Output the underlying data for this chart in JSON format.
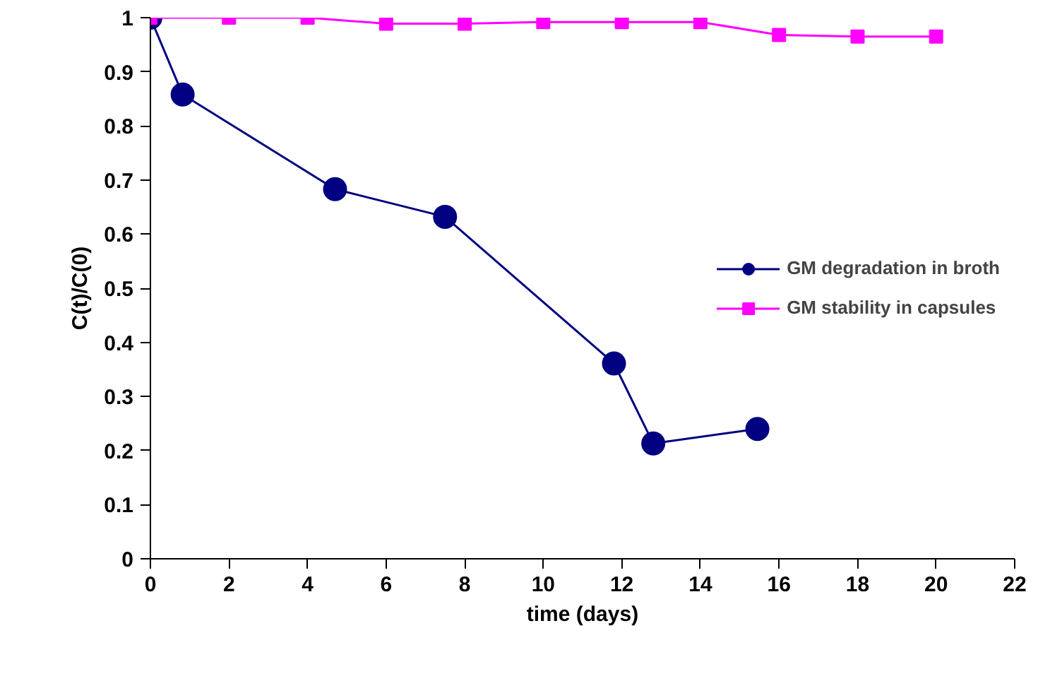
{
  "chart_data": {
    "type": "line",
    "xlabel": "time (days)",
    "ylabel": "C(t)/C(0)",
    "xlim": [
      0,
      22
    ],
    "xticks": [
      0,
      2,
      4,
      6,
      8,
      10,
      12,
      14,
      16,
      18,
      20,
      22
    ],
    "ylim": [
      0,
      1
    ],
    "yticks": [
      0,
      0.1,
      0.2,
      0.3,
      0.4,
      0.5,
      0.6,
      0.7,
      0.8,
      0.9,
      1
    ],
    "grid": false,
    "legend": "right",
    "line_style": "solid",
    "series": [
      {
        "name": "GM degradation in broth",
        "color": "#000080",
        "marker": "circle",
        "x": [
          0,
          0.82,
          4.7,
          7.5,
          11.8,
          12.8,
          15.45
        ],
        "values": [
          1,
          0.858,
          0.683,
          0.632,
          0.361,
          0.213,
          0.24
        ]
      },
      {
        "name": "GM stability in capsules",
        "color": "#ff00ff",
        "marker": "square",
        "x": [
          0,
          2,
          4,
          6,
          8,
          10,
          12,
          14,
          16,
          18,
          20
        ],
        "values": [
          1,
          1,
          1,
          0.989,
          0.989,
          0.992,
          0.992,
          0.992,
          0.968,
          0.965,
          0.965
        ]
      }
    ]
  }
}
